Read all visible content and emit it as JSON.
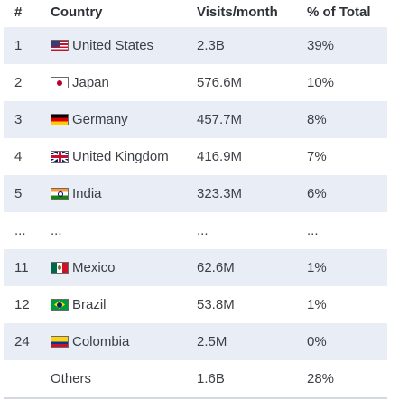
{
  "headers": {
    "rank": "#",
    "country": "Country",
    "visits": "Visits/month",
    "share": "% of Total"
  },
  "rows": [
    {
      "rank": "1",
      "country": "United States",
      "flag": "us-flag-icon",
      "visits": "2.3B",
      "share": "39%"
    },
    {
      "rank": "2",
      "country": "Japan",
      "flag": "jp-flag-icon",
      "visits": "576.6M",
      "share": "10%"
    },
    {
      "rank": "3",
      "country": "Germany",
      "flag": "de-flag-icon",
      "visits": "457.7M",
      "share": "8%"
    },
    {
      "rank": "4",
      "country": "United Kingdom",
      "flag": "uk-flag-icon",
      "visits": "416.9M",
      "share": "7%"
    },
    {
      "rank": "5",
      "country": "India",
      "flag": "in-flag-icon",
      "visits": "323.3M",
      "share": "6%"
    },
    {
      "rank": "...",
      "country": "...",
      "visits": "...",
      "share": "..."
    },
    {
      "rank": "11",
      "country": "Mexico",
      "flag": "mx-flag-icon",
      "visits": "62.6M",
      "share": "1%"
    },
    {
      "rank": "12",
      "country": "Brazil",
      "flag": "br-flag-icon",
      "visits": "53.8M",
      "share": "1%"
    },
    {
      "rank": "24",
      "country": "Colombia",
      "flag": "co-flag-icon",
      "visits": "2.5M",
      "share": "0%"
    },
    {
      "rank": "",
      "country": "Others",
      "visits": "1.6B",
      "share": "28%"
    }
  ],
  "colors": {
    "row_shade": "#e8edf6",
    "text": "#3c3f44",
    "bottom_rule": "#d4d8df"
  }
}
